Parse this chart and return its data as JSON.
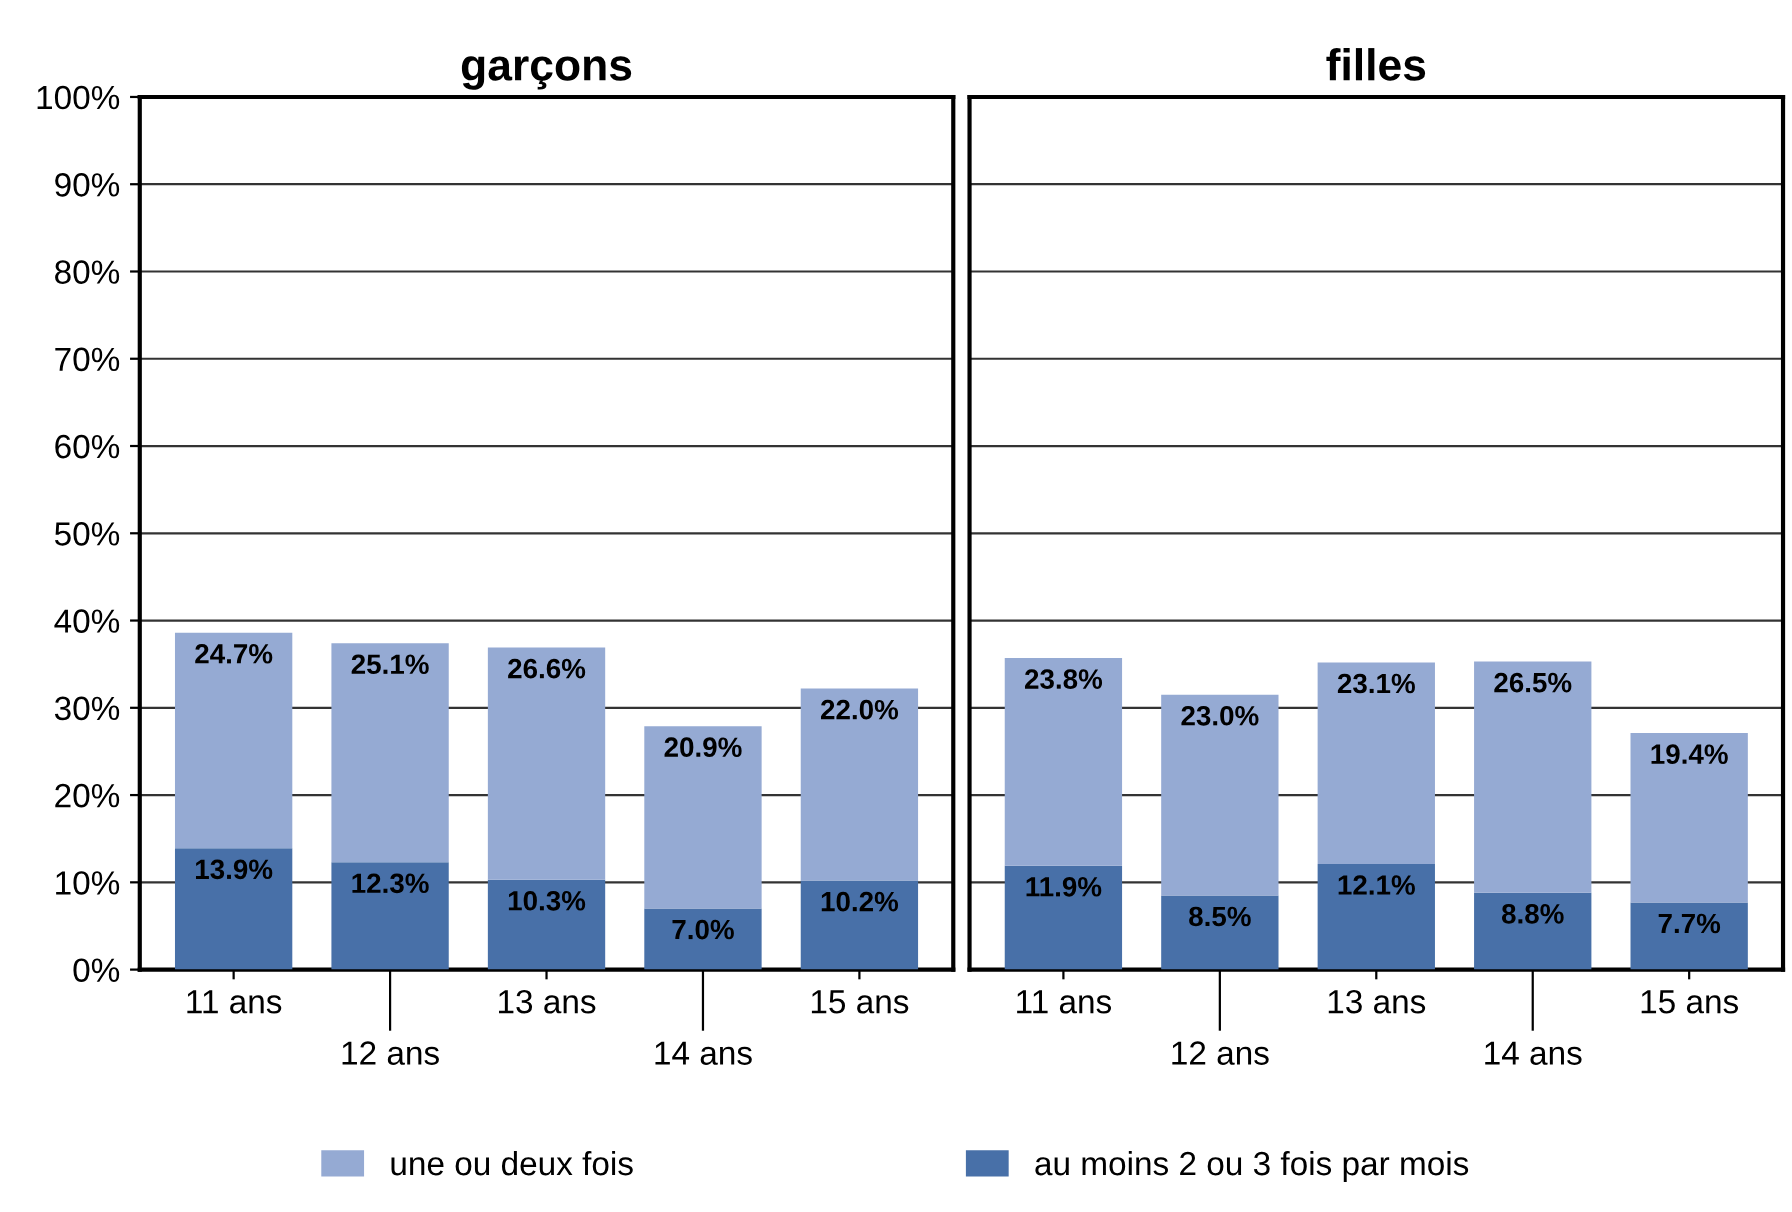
{
  "chart_data": [
    {
      "type": "bar",
      "stacked": true,
      "title": "garçons",
      "categories": [
        "11 ans",
        "12 ans",
        "13 ans",
        "14 ans",
        "15 ans"
      ],
      "series": [
        {
          "name": "au moins 2 ou 3 fois par mois",
          "color": "#4870a8",
          "values": [
            13.9,
            12.3,
            10.3,
            7.0,
            10.2
          ],
          "value_labels": [
            "13.9%",
            "12.3%",
            "10.3%",
            "7.0%",
            "10.2%"
          ]
        },
        {
          "name": "une ou deux fois",
          "color": "#95aad3",
          "values": [
            24.7,
            25.1,
            26.6,
            20.9,
            22.0
          ],
          "value_labels": [
            "24.7%",
            "25.1%",
            "26.6%",
            "20.9%",
            "22.0%"
          ]
        }
      ],
      "ylim": [
        0,
        100
      ],
      "yticks": [
        {
          "value": 0,
          "label": "0%"
        },
        {
          "value": 10,
          "label": "10%"
        },
        {
          "value": 20,
          "label": "20%"
        },
        {
          "value": 30,
          "label": "30%"
        },
        {
          "value": 40,
          "label": "40%"
        },
        {
          "value": 50,
          "label": "50%"
        },
        {
          "value": 60,
          "label": "60%"
        },
        {
          "value": 70,
          "label": "70%"
        },
        {
          "value": 80,
          "label": "80%"
        },
        {
          "value": 90,
          "label": "90%"
        },
        {
          "value": 100,
          "label": "100%"
        }
      ],
      "grid": "y",
      "legend": "bottom"
    },
    {
      "type": "bar",
      "stacked": true,
      "title": "filles",
      "categories": [
        "11 ans",
        "12 ans",
        "13 ans",
        "14 ans",
        "15 ans"
      ],
      "series": [
        {
          "color": "#4870a8",
          "values": [
            11.9,
            8.5,
            12.1,
            8.8,
            7.7
          ],
          "value_labels": [
            "11.9%",
            "8.5%",
            "12.1%",
            "8.8%",
            "7.7%"
          ]
        },
        {
          "color": "#95aad3",
          "values": [
            23.8,
            23.0,
            23.1,
            26.5,
            19.4
          ],
          "value_labels": [
            "23.8%",
            "23.0%",
            "23.1%",
            "26.5%",
            "19.4%"
          ]
        }
      ],
      "ylim": [
        0,
        100
      ],
      "yticks": [
        0,
        10,
        20,
        30,
        40,
        50,
        60,
        70,
        80,
        90,
        100
      ],
      "grid": "y",
      "tick_labels": "x"
    }
  ]
}
